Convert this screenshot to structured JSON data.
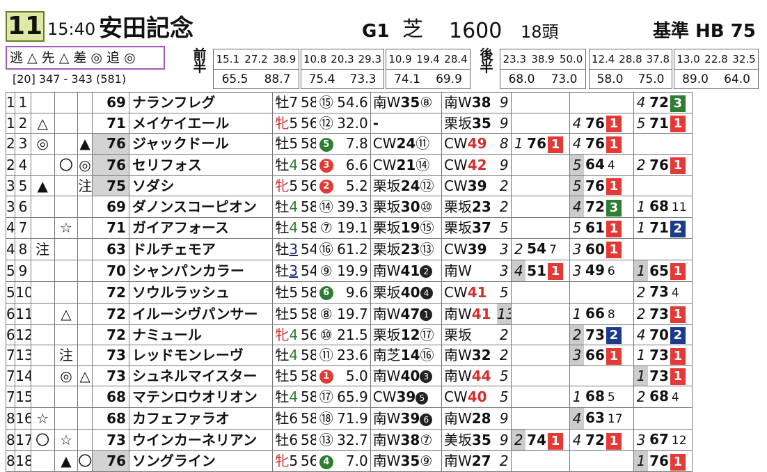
{
  "header": {
    "race_no": "11",
    "time": "15:40",
    "race_name": "安田記念",
    "grade": "G1",
    "surface": "芝",
    "distance": "1600",
    "runners": "18頭",
    "basis": "基準 HB 75"
  },
  "styles": "逃 △ 先 △ 差 ◎ 追 ◎",
  "subline": "[20]  347 - 343 (581)",
  "labels": {
    "zen": "前半",
    "kou": "後半"
  },
  "zen_laps": [
    {
      "s": [
        "15.1",
        "27.2",
        "38.9"
      ],
      "b": [
        "65.5",
        "88.7"
      ]
    },
    {
      "s": [
        "10.8",
        "20.3",
        "29.3"
      ],
      "b": [
        "75.4",
        "73.3"
      ]
    },
    {
      "s": [
        "10.9",
        "19.4",
        "28.4"
      ],
      "b": [
        "74.1",
        "69.9"
      ]
    }
  ],
  "kou_laps": [
    {
      "s": [
        "23.3",
        "38.9",
        "50.0"
      ],
      "b": [
        "68.0",
        "73.0"
      ]
    },
    {
      "s": [
        "12.4",
        "28.8",
        "37.8"
      ],
      "b": [
        "58.0",
        "75.0"
      ]
    },
    {
      "s": [
        "13.0",
        "22.8",
        "32.5"
      ],
      "b": [
        "89.0",
        "64.0"
      ]
    }
  ],
  "colors": {
    "red": "#e53935",
    "green": "#2e7d32",
    "navy": "#1e3a8a",
    "raceno_bg": "#dfe9a6",
    "styles_border": "#a35ab5"
  },
  "horses": [
    {
      "frame": "1",
      "num": "1",
      "m1": "",
      "m2": "",
      "m3": "",
      "score": "69",
      "sg": false,
      "name": "ナランフレグ",
      "sex": "牡",
      "sc": "",
      "age": "7",
      "ac": "",
      "weight": "58",
      "pop": "⑮",
      "popt": "o",
      "odds": "54.6",
      "tr1": "南W",
      "t1": "35",
      "p1": "⑧",
      "tr2": "南W",
      "t2": "38",
      "rk": "9",
      "rkg": false,
      "a": null,
      "b": null,
      "c": {
        "pc": "4",
        "pcg": false,
        "val": "72",
        "bc": "g",
        "bt": "3"
      }
    },
    {
      "frame": "1",
      "num": "2",
      "m1": "△",
      "m2": "",
      "m3": "",
      "score": "71",
      "sg": false,
      "name": "メイケイエール",
      "sex": "牝",
      "sc": "red",
      "age": "5",
      "ac": "",
      "weight": "56",
      "pop": "⑫",
      "popt": "o",
      "odds": "32.0",
      "tr1": "",
      "t1": "-",
      "p1": "",
      "tr2": "栗坂",
      "t2": "35",
      "rk": "9",
      "rkg": false,
      "a": null,
      "b": {
        "pc": "4",
        "pcg": false,
        "val": "76",
        "bc": "r",
        "bt": "1"
      },
      "c": {
        "pc": "5",
        "pcg": false,
        "val": "71",
        "bc": "r",
        "bt": "1"
      }
    },
    {
      "frame": "2",
      "num": "3",
      "m1": "◎",
      "m2": "",
      "m3": "▲",
      "score": "76",
      "sg": true,
      "name": "ジャックドール",
      "sex": "牡",
      "sc": "",
      "age": "5",
      "ac": "",
      "weight": "58",
      "pop": "5",
      "popt": "g",
      "odds": "7.8",
      "tr1": "CW",
      "t1": "24",
      "p1": "⑪",
      "tr2": "CW",
      "t2": "49",
      "t2c": "red",
      "rk": "8",
      "rkg": false,
      "a": {
        "pc": "1",
        "pcg": false,
        "val": "76",
        "bc": "r",
        "bt": "1"
      },
      "b": {
        "pc": "4",
        "pcg": false,
        "val": "76",
        "bc": "r",
        "bt": "1"
      },
      "c": null
    },
    {
      "frame": "2",
      "num": "4",
      "m1": "",
      "m2": "〇",
      "m3": "◎",
      "score": "76",
      "sg": true,
      "name": "セリフォス",
      "sex": "牡",
      "sc": "",
      "age": "4",
      "ac": "grn",
      "weight": "58",
      "pop": "3",
      "popt": "r",
      "odds": "6.6",
      "tr1": "CW",
      "t1": "21",
      "p1": "⑭",
      "tr2": "CW",
      "t2": "42",
      "t2c": "red",
      "rk": "9",
      "rkg": false,
      "a": null,
      "b": {
        "pc": "5",
        "pcg": true,
        "val": "64",
        "pl": "4"
      },
      "c": {
        "pc": "2",
        "pcg": false,
        "val": "76",
        "bc": "r",
        "bt": "1"
      }
    },
    {
      "frame": "3",
      "num": "5",
      "m1": "▲",
      "m2": "",
      "m3": "注",
      "score": "75",
      "sg": true,
      "name": "ソダシ",
      "sex": "牝",
      "sc": "red",
      "age": "5",
      "ac": "",
      "weight": "56",
      "pop": "2",
      "popt": "r",
      "odds": "5.2",
      "tr1": "栗坂",
      "t1": "24",
      "p1": "⑫",
      "tr2": "CW",
      "t2": "39",
      "rk": "2",
      "rkg": false,
      "a": null,
      "b": {
        "pc": "5",
        "pcg": true,
        "val": "76",
        "bc": "r",
        "bt": "1"
      },
      "c": null
    },
    {
      "frame": "3",
      "num": "6",
      "m1": "",
      "m2": "",
      "m3": "",
      "score": "69",
      "sg": false,
      "name": "ダノンスコーピオン",
      "sex": "牡",
      "sc": "",
      "age": "4",
      "ac": "grn",
      "weight": "58",
      "pop": "⑭",
      "popt": "o",
      "odds": "39.3",
      "tr1": "栗坂",
      "t1": "30",
      "p1": "⑩",
      "tr2": "栗坂",
      "t2": "23",
      "rk": "2",
      "rkg": false,
      "a": null,
      "b": {
        "pc": "4",
        "pcg": true,
        "val": "72",
        "bc": "g",
        "bt": "3"
      },
      "c": {
        "pc": "1",
        "pcg": false,
        "val": "68",
        "pl": "11"
      }
    },
    {
      "frame": "4",
      "num": "7",
      "m1": "",
      "m2": "☆",
      "m3": "",
      "score": "71",
      "sg": false,
      "name": "ガイアフォース",
      "sex": "牡",
      "sc": "",
      "age": "4",
      "ac": "grn",
      "weight": "58",
      "pop": "⑦",
      "popt": "o",
      "odds": "19.1",
      "tr1": "栗坂",
      "t1": "19",
      "p1": "⑮",
      "tr2": "栗坂",
      "t2": "37",
      "rk": "5",
      "rkg": false,
      "a": null,
      "b": {
        "pc": "5",
        "pcg": false,
        "val": "61",
        "bc": "r",
        "bt": "1"
      },
      "c": {
        "pc": "1",
        "pcg": false,
        "val": "71",
        "bc": "b",
        "bt": "2"
      }
    },
    {
      "frame": "4",
      "num": "8",
      "m1": "注",
      "m2": "",
      "m3": "",
      "score": "63",
      "sg": false,
      "name": "ドルチェモア",
      "sex": "牡",
      "sc": "",
      "age": "3",
      "ac": "blu",
      "weight": "54",
      "pop": "⑯",
      "popt": "o",
      "odds": "61.2",
      "tr1": "栗坂",
      "t1": "23",
      "p1": "⑬",
      "tr2": "CW",
      "t2": "39",
      "rk": "3",
      "rkg": false,
      "a": {
        "pc": "2",
        "pcg": false,
        "val": "54",
        "pl": "7"
      },
      "b": {
        "pc": "3",
        "pcg": false,
        "val": "60",
        "bc": "r",
        "bt": "1"
      },
      "c": null
    },
    {
      "frame": "5",
      "num": "9",
      "m1": "",
      "m2": "",
      "m3": "",
      "score": "70",
      "sg": false,
      "name": "シャンパンカラー",
      "sex": "牡",
      "sc": "",
      "age": "3",
      "ac": "blu",
      "weight": "54",
      "pop": "⑨",
      "popt": "o",
      "odds": "19.9",
      "tr1": "南W",
      "t1": "41",
      "p1": "2",
      "p1f": true,
      "tr2": "南W",
      "t2": "",
      "rk": "3",
      "rkg": false,
      "a": {
        "pc": "4",
        "pcg": true,
        "val": "51",
        "bc": "r",
        "bt": "1"
      },
      "b": {
        "pc": "3",
        "pcg": false,
        "val": "49",
        "pl": "6"
      },
      "c": {
        "pc": "1",
        "pcg": true,
        "val": "65",
        "bc": "r",
        "bt": "1"
      }
    },
    {
      "frame": "5",
      "num": "10",
      "m1": "",
      "m2": "",
      "m3": "",
      "score": "72",
      "sg": false,
      "name": "ソウルラッシュ",
      "sex": "牡",
      "sc": "",
      "age": "5",
      "ac": "",
      "weight": "58",
      "pop": "6",
      "popt": "g",
      "odds": "9.6",
      "tr1": "栗坂",
      "t1": "40",
      "p1": "4",
      "p1f": true,
      "tr2": "CW",
      "t2": "41",
      "t2c": "red",
      "rk": "5",
      "rkg": false,
      "a": null,
      "b": null,
      "c": {
        "pc": "2",
        "pcg": false,
        "val": "73",
        "pl": "4"
      }
    },
    {
      "frame": "6",
      "num": "11",
      "m1": "",
      "m2": "△",
      "m3": "",
      "score": "72",
      "sg": false,
      "name": "イルーシヴパンサー",
      "sex": "牡",
      "sc": "",
      "age": "5",
      "ac": "",
      "weight": "58",
      "pop": "⑧",
      "popt": "o",
      "odds": "19.7",
      "tr1": "南W",
      "t1": "47",
      "p1": "1",
      "p1f": true,
      "tr2": "南W",
      "t2": "41",
      "t2c": "red",
      "rk": "13",
      "rkg": true,
      "a": null,
      "b": {
        "pc": "1",
        "pcg": false,
        "val": "66",
        "pl": "8"
      },
      "c": {
        "pc": "2",
        "pcg": false,
        "val": "73",
        "bc": "r",
        "bt": "1"
      }
    },
    {
      "frame": "6",
      "num": "12",
      "m1": "",
      "m2": "",
      "m3": "",
      "score": "72",
      "sg": false,
      "name": "ナミュール",
      "sex": "牝",
      "sc": "red",
      "age": "4",
      "ac": "grn",
      "weight": "56",
      "pop": "⑩",
      "popt": "o",
      "odds": "21.5",
      "tr1": "栗坂",
      "t1": "12",
      "p1": "⑰",
      "tr2": "栗坂",
      "t2": "",
      "rk": "2",
      "rkg": false,
      "a": null,
      "b": {
        "pc": "2",
        "pcg": true,
        "val": "73",
        "bc": "b",
        "bt": "2"
      },
      "c": {
        "pc": "4",
        "pcg": false,
        "val": "70",
        "bc": "b",
        "bt": "2"
      }
    },
    {
      "frame": "7",
      "num": "13",
      "m1": "",
      "m2": "注",
      "m3": "",
      "score": "73",
      "sg": false,
      "name": "レッドモンレーヴ",
      "sex": "牡",
      "sc": "",
      "age": "4",
      "ac": "grn",
      "weight": "58",
      "pop": "⑪",
      "popt": "o",
      "odds": "23.6",
      "tr1": "南芝",
      "t1": "14",
      "p1": "⑯",
      "tr2": "南W",
      "t2": "32",
      "rk": "2",
      "rkg": false,
      "a": null,
      "b": {
        "pc": "3",
        "pcg": true,
        "val": "66",
        "bc": "r",
        "bt": "1"
      },
      "c": {
        "pc": "1",
        "pcg": false,
        "val": "73",
        "bc": "r",
        "bt": "1"
      }
    },
    {
      "frame": "7",
      "num": "14",
      "m1": "",
      "m2": "◎",
      "m3": "△",
      "score": "73",
      "sg": false,
      "name": "シュネルマイスター",
      "sex": "牡",
      "sc": "",
      "age": "5",
      "ac": "",
      "weight": "58",
      "pop": "1",
      "popt": "r",
      "odds": "5.0",
      "tr1": "南W",
      "t1": "40",
      "p1": "3",
      "p1f": true,
      "tr2": "南W",
      "t2": "44",
      "t2c": "red",
      "rk": "5",
      "rkg": false,
      "a": null,
      "b": null,
      "c": {
        "pc": "1",
        "pcg": true,
        "val": "73",
        "bc": "r",
        "bt": "1"
      }
    },
    {
      "frame": "7",
      "num": "15",
      "m1": "",
      "m2": "",
      "m3": "",
      "score": "68",
      "sg": false,
      "name": "マテンロウオリオン",
      "sex": "牡",
      "sc": "",
      "age": "4",
      "ac": "grn",
      "weight": "58",
      "pop": "⑰",
      "popt": "o",
      "odds": "65.9",
      "tr1": "CW",
      "t1": "39",
      "p1": "5",
      "p1f": true,
      "tr2": "CW",
      "t2": "40",
      "t2c": "red",
      "rk": "5",
      "rkg": false,
      "a": null,
      "b": {
        "pc": "1",
        "pcg": false,
        "val": "68",
        "pl": "5"
      },
      "c": {
        "pc": "2",
        "pcg": false,
        "val": "68",
        "pl": "4"
      }
    },
    {
      "frame": "8",
      "num": "16",
      "m1": "☆",
      "m2": "",
      "m3": "",
      "score": "68",
      "sg": false,
      "name": "カフェファラオ",
      "sex": "牡",
      "sc": "",
      "age": "6",
      "ac": "",
      "weight": "58",
      "pop": "⑱",
      "popt": "o",
      "odds": "71.9",
      "tr1": "南W",
      "t1": "39",
      "p1": "6",
      "p1f": true,
      "tr2": "南W",
      "t2": "28",
      "rk": "9",
      "rkg": false,
      "a": null,
      "b": {
        "pc": "4",
        "pcg": true,
        "val": "63",
        "pl": "17"
      },
      "c": null
    },
    {
      "frame": "8",
      "num": "17",
      "m1": "〇",
      "m2": "☆",
      "m3": "",
      "score": "73",
      "sg": false,
      "name": "ウインカーネリアン",
      "sex": "牡",
      "sc": "",
      "age": "6",
      "ac": "",
      "weight": "58",
      "pop": "⑬",
      "popt": "o",
      "odds": "32.7",
      "tr1": "南W",
      "t1": "38",
      "p1": "⑦",
      "tr2": "美坂",
      "t2": "35",
      "rk": "9",
      "rkg": false,
      "a": {
        "pc": "2",
        "pcg": true,
        "val": "74",
        "bc": "r",
        "bt": "1"
      },
      "b": {
        "pc": "4",
        "pcg": false,
        "val": "72",
        "bc": "r",
        "bt": "1"
      },
      "c": {
        "pc": "3",
        "pcg": false,
        "val": "67",
        "pl": "12"
      }
    },
    {
      "frame": "8",
      "num": "18",
      "m1": "",
      "m2": "▲",
      "m3": "〇",
      "score": "76",
      "sg": true,
      "name": "ソングライン",
      "sex": "牝",
      "sc": "red",
      "age": "5",
      "ac": "",
      "weight": "56",
      "pop": "4",
      "popt": "g",
      "odds": "7.0",
      "tr1": "南W",
      "t1": "35",
      "p1": "⑨",
      "tr2": "南W",
      "t2": "27",
      "rk": "2",
      "rkg": false,
      "a": null,
      "b": null,
      "c": {
        "pc": "1",
        "pcg": true,
        "val": "76",
        "bc": "r",
        "bt": "1"
      }
    }
  ]
}
